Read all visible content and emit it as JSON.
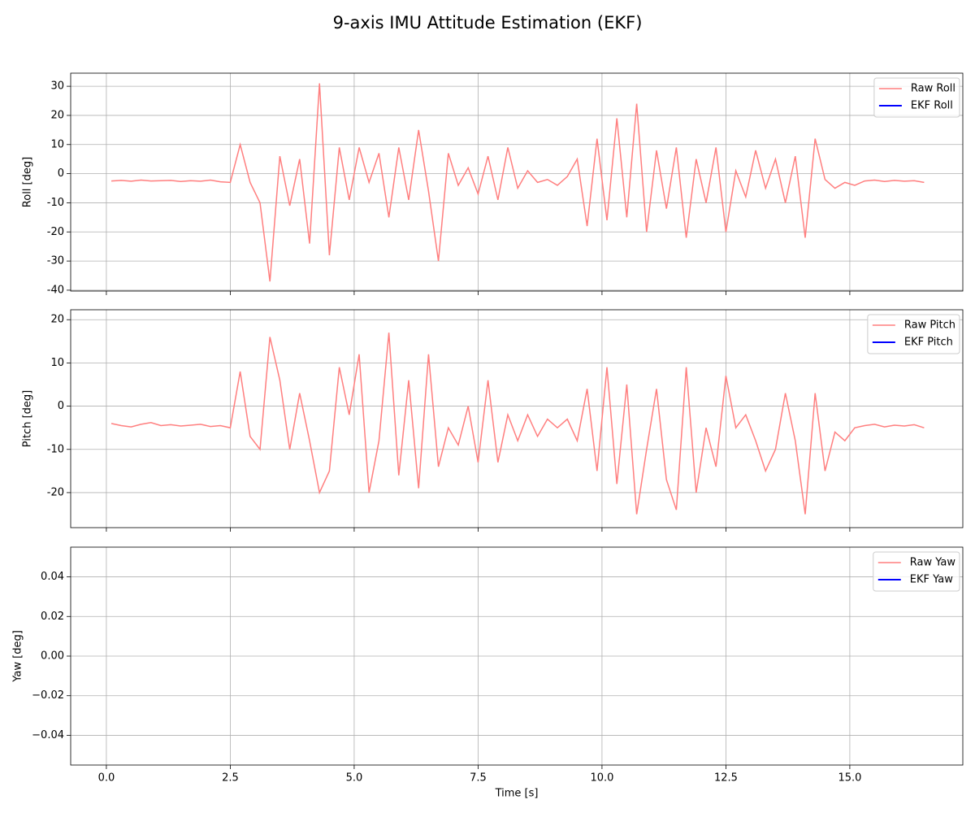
{
  "title": "9-axis IMU Attitude Estimation (EKF)",
  "chart_data": [
    {
      "type": "line",
      "ylabel": "Roll [deg]",
      "grid": true,
      "legend": "upper right",
      "xlim": [
        -0.72,
        17.28
      ],
      "xticks": [
        0,
        2.5,
        5,
        7.5,
        10,
        12.5,
        15
      ],
      "ylim": [
        -40.3,
        34.5
      ],
      "yticks": [
        -40,
        -30,
        -20,
        -10,
        0,
        10,
        20,
        30
      ],
      "x": [
        0.1,
        0.3,
        0.5,
        0.7,
        0.9,
        1.1,
        1.3,
        1.5,
        1.7,
        1.9,
        2.1,
        2.3,
        2.5,
        2.7,
        2.9,
        3.1,
        3.3,
        3.5,
        3.7,
        3.9,
        4.1,
        4.3,
        4.5,
        4.7,
        4.9,
        5.1,
        5.3,
        5.5,
        5.7,
        5.9,
        6.1,
        6.3,
        6.5,
        6.7,
        6.9,
        7.1,
        7.3,
        7.5,
        7.7,
        7.9,
        8.1,
        8.3,
        8.5,
        8.7,
        8.9,
        9.1,
        9.3,
        9.5,
        9.7,
        9.9,
        10.1,
        10.3,
        10.5,
        10.7,
        10.9,
        11.1,
        11.3,
        11.5,
        11.7,
        11.9,
        12.1,
        12.3,
        12.5,
        12.7,
        12.9,
        13.1,
        13.3,
        13.5,
        13.7,
        13.9,
        14.1,
        14.3,
        14.5,
        14.7,
        14.9,
        15.1,
        15.3,
        15.5,
        15.7,
        15.9,
        16.1,
        16.3,
        16.5
      ],
      "series": [
        {
          "name": "Raw Roll",
          "color": "#ff7f7f",
          "values": [
            -2.5,
            -2.3,
            -2.6,
            -2.2,
            -2.5,
            -2.4,
            -2.3,
            -2.7,
            -2.4,
            -2.6,
            -2.2,
            -2.8,
            -3,
            10,
            -3,
            -10,
            -37,
            6,
            -11,
            5,
            -24,
            31,
            -28,
            9,
            -9,
            9,
            -3,
            7,
            -15,
            9,
            -9,
            15,
            -6,
            -30,
            7,
            -4,
            2,
            -7,
            6,
            -9,
            9,
            -5,
            1,
            -3,
            -2,
            -4,
            -1,
            5,
            -18,
            12,
            -16,
            19,
            -15,
            24,
            -20,
            8,
            -12,
            9,
            -22,
            5,
            -10,
            9,
            -20,
            1,
            -8,
            8,
            -5,
            5,
            -10,
            6,
            -22,
            12,
            -2,
            -5,
            -3,
            -4,
            -2.5,
            -2.2,
            -2.7,
            -2.3,
            -2.6,
            -2.4,
            -3
          ]
        },
        {
          "name": "EKF Roll",
          "color": "#0000ff",
          "values": [
            null,
            null,
            null,
            null,
            null,
            null,
            null,
            null,
            null,
            null,
            null,
            null,
            null,
            null,
            null,
            null,
            null,
            null,
            null,
            null,
            null,
            null,
            null,
            null,
            null,
            null,
            null,
            null,
            null,
            null,
            null,
            null,
            null,
            null,
            null,
            null,
            null,
            null,
            null,
            null,
            null,
            null,
            null,
            null,
            null,
            null,
            null,
            null,
            null,
            null,
            null,
            null,
            null,
            null,
            null,
            null,
            null,
            null,
            null,
            null,
            null,
            null,
            null,
            null,
            null,
            null,
            null,
            null,
            null,
            null,
            null,
            null,
            null,
            null,
            null,
            null,
            null,
            null,
            null,
            null,
            null,
            null,
            null
          ]
        }
      ]
    },
    {
      "type": "line",
      "ylabel": "Pitch [deg]",
      "grid": true,
      "legend": "upper right",
      "xlim": [
        -0.72,
        17.28
      ],
      "xticks": [
        0,
        2.5,
        5,
        7.5,
        10,
        12.5,
        15
      ],
      "ylim": [
        -28.1,
        22.3
      ],
      "yticks": [
        -20,
        -10,
        0,
        10,
        20
      ],
      "x": [
        0.1,
        0.3,
        0.5,
        0.7,
        0.9,
        1.1,
        1.3,
        1.5,
        1.7,
        1.9,
        2.1,
        2.3,
        2.5,
        2.7,
        2.9,
        3.1,
        3.3,
        3.5,
        3.7,
        3.9,
        4.1,
        4.3,
        4.5,
        4.7,
        4.9,
        5.1,
        5.3,
        5.5,
        5.7,
        5.9,
        6.1,
        6.3,
        6.5,
        6.7,
        6.9,
        7.1,
        7.3,
        7.5,
        7.7,
        7.9,
        8.1,
        8.3,
        8.5,
        8.7,
        8.9,
        9.1,
        9.3,
        9.5,
        9.7,
        9.9,
        10.1,
        10.3,
        10.5,
        10.7,
        10.9,
        11.1,
        11.3,
        11.5,
        11.7,
        11.9,
        12.1,
        12.3,
        12.5,
        12.7,
        12.9,
        13.1,
        13.3,
        13.5,
        13.7,
        13.9,
        14.1,
        14.3,
        14.5,
        14.7,
        14.9,
        15.1,
        15.3,
        15.5,
        15.7,
        15.9,
        16.1,
        16.3,
        16.5
      ],
      "series": [
        {
          "name": "Raw Pitch",
          "color": "#ff7f7f",
          "values": [
            -4,
            -4.5,
            -4.8,
            -4.2,
            -3.8,
            -4.5,
            -4.3,
            -4.6,
            -4.4,
            -4.2,
            -4.7,
            -4.5,
            -5,
            8,
            -7,
            -10,
            16,
            6,
            -10,
            3,
            -8,
            -20,
            -15,
            9,
            -2,
            12,
            -20,
            -8,
            17,
            -16,
            6,
            -19,
            12,
            -14,
            -5,
            -9,
            0,
            -13,
            6,
            -13,
            -2,
            -8,
            -2,
            -7,
            -3,
            -5,
            -3,
            -8,
            4,
            -15,
            9,
            -18,
            5,
            -25,
            -10,
            4,
            -17,
            -24,
            9,
            -20,
            -5,
            -14,
            7,
            -5,
            -2,
            -8,
            -15,
            -10,
            3,
            -8,
            -25,
            3,
            -15,
            -6,
            -8,
            -5,
            -4.5,
            -4.2,
            -4.8,
            -4.4,
            -4.6,
            -4.3,
            -5
          ]
        },
        {
          "name": "EKF Pitch",
          "color": "#0000ff",
          "values": [
            null,
            null,
            null,
            null,
            null,
            null,
            null,
            null,
            null,
            null,
            null,
            null,
            null,
            null,
            null,
            null,
            null,
            null,
            null,
            null,
            null,
            null,
            null,
            null,
            null,
            null,
            null,
            null,
            null,
            null,
            null,
            null,
            null,
            null,
            null,
            null,
            null,
            null,
            null,
            null,
            null,
            null,
            null,
            null,
            null,
            null,
            null,
            null,
            null,
            null,
            null,
            null,
            null,
            null,
            null,
            null,
            null,
            null,
            null,
            null,
            null,
            null,
            null,
            null,
            null,
            null,
            null,
            null,
            null,
            null,
            null,
            null,
            null,
            null,
            null,
            null,
            null,
            null,
            null,
            null,
            null,
            null,
            null
          ]
        }
      ]
    },
    {
      "type": "line",
      "ylabel": "Yaw [deg]",
      "xlabel": "Time [s]",
      "grid": true,
      "legend": "upper right",
      "xlim": [
        -0.72,
        17.28
      ],
      "xticks": [
        {
          "value": 0,
          "label": "0.0"
        },
        {
          "value": 2.5,
          "label": "2.5"
        },
        {
          "value": 5,
          "label": "5.0"
        },
        {
          "value": 7.5,
          "label": "7.5"
        },
        {
          "value": 10,
          "label": "10.0"
        },
        {
          "value": 12.5,
          "label": "12.5"
        },
        {
          "value": 15,
          "label": "15.0"
        }
      ],
      "ylim": [
        -0.055,
        0.055
      ],
      "yticks": [
        {
          "value": -0.04,
          "label": "−0.04"
        },
        {
          "value": -0.02,
          "label": "−0.02"
        },
        {
          "value": 0,
          "label": "0.00"
        },
        0.02,
        0.04
      ],
      "x": [
        0.1,
        0.3,
        0.5,
        0.7,
        0.9,
        1.1,
        1.3,
        1.5,
        1.7,
        1.9,
        2.1,
        2.3,
        2.5,
        2.7,
        2.9,
        3.1,
        3.3,
        3.5,
        3.7,
        3.9,
        4.1,
        4.3,
        4.5,
        4.7,
        4.9,
        5.1,
        5.3,
        5.5,
        5.7,
        5.9,
        6.1,
        6.3,
        6.5,
        6.7,
        6.9,
        7.1,
        7.3,
        7.5,
        7.7,
        7.9,
        8.1,
        8.3,
        8.5,
        8.7,
        8.9,
        9.1,
        9.3,
        9.5,
        9.7,
        9.9,
        10.1,
        10.3,
        10.5,
        10.7,
        10.9,
        11.1,
        11.3,
        11.5,
        11.7,
        11.9,
        12.1,
        12.3,
        12.5,
        12.7,
        12.9,
        13.1,
        13.3,
        13.5,
        13.7,
        13.9,
        14.1,
        14.3,
        14.5,
        14.7,
        14.9,
        15.1,
        15.3,
        15.5,
        15.7,
        15.9,
        16.1,
        16.3,
        16.5
      ],
      "series": [
        {
          "name": "Raw Yaw",
          "color": "#ff7f7f",
          "values": [
            null,
            null,
            null,
            null,
            null,
            null,
            null,
            null,
            null,
            null,
            null,
            null,
            null,
            null,
            null,
            null,
            null,
            null,
            null,
            null,
            null,
            null,
            null,
            null,
            null,
            null,
            null,
            null,
            null,
            null,
            null,
            null,
            null,
            null,
            null,
            null,
            null,
            null,
            null,
            null,
            null,
            null,
            null,
            null,
            null,
            null,
            null,
            null,
            null,
            null,
            null,
            null,
            null,
            null,
            null,
            null,
            null,
            null,
            null,
            null,
            null,
            null,
            null,
            null,
            null,
            null,
            null,
            null,
            null,
            null,
            null,
            null,
            null,
            null,
            null,
            null,
            null,
            null,
            null,
            null,
            null,
            null,
            null
          ]
        },
        {
          "name": "EKF Yaw",
          "color": "#0000ff",
          "values": [
            null,
            null,
            null,
            null,
            null,
            null,
            null,
            null,
            null,
            null,
            null,
            null,
            null,
            null,
            null,
            null,
            null,
            null,
            null,
            null,
            null,
            null,
            null,
            null,
            null,
            null,
            null,
            null,
            null,
            null,
            null,
            null,
            null,
            null,
            null,
            null,
            null,
            null,
            null,
            null,
            null,
            null,
            null,
            null,
            null,
            null,
            null,
            null,
            null,
            null,
            null,
            null,
            null,
            null,
            null,
            null,
            null,
            null,
            null,
            null,
            null,
            null,
            null,
            null,
            null,
            null,
            null,
            null,
            null,
            null,
            null,
            null,
            null,
            null,
            null,
            null,
            null,
            null,
            null,
            null,
            null,
            null,
            null
          ]
        }
      ]
    }
  ]
}
